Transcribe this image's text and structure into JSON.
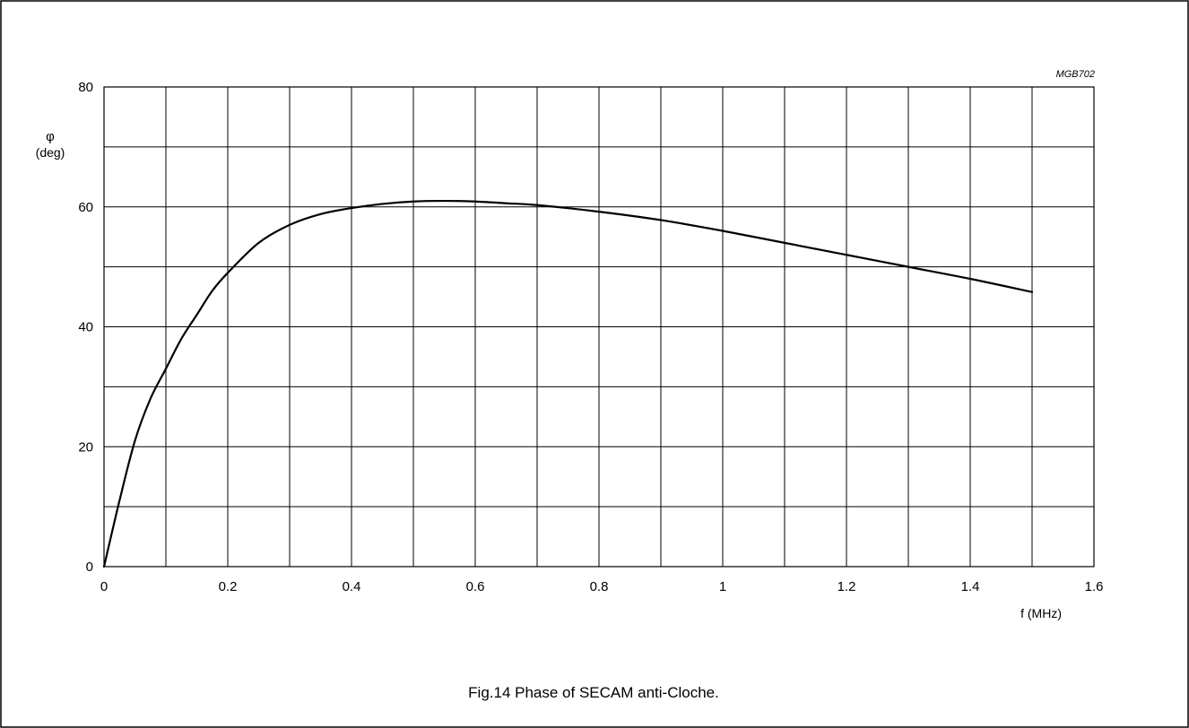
{
  "chart_data": {
    "type": "line",
    "title": "",
    "caption": "Fig.14  Phase of SECAM anti-Cloche.",
    "reference_code": "MGB702",
    "ylabel_symbol": "φ",
    "ylabel_unit": "(deg)",
    "xlabel": "f (MHz)",
    "xlim": [
      0,
      1.6
    ],
    "ylim": [
      0,
      80
    ],
    "x_ticks": [
      0,
      0.2,
      0.4,
      0.6,
      0.8,
      1,
      1.2,
      1.4,
      1.6
    ],
    "x_tick_labels": [
      "0",
      "0.2",
      "0.4",
      "0.6",
      "0.8",
      "1",
      "1.2",
      "1.4",
      "1.6"
    ],
    "y_ticks": [
      0,
      20,
      40,
      60,
      80
    ],
    "y_tick_labels": [
      "0",
      "20",
      "40",
      "60",
      "80"
    ],
    "x_grid_step": 0.1,
    "y_grid_step": 10,
    "grid": true,
    "series": [
      {
        "x": [
          0,
          0.025,
          0.05,
          0.075,
          0.1,
          0.125,
          0.15,
          0.175,
          0.2,
          0.25,
          0.3,
          0.35,
          0.4,
          0.45,
          0.5,
          0.55,
          0.6,
          0.65,
          0.7,
          0.8,
          0.9,
          1.0,
          1.1,
          1.2,
          1.3,
          1.4,
          1.5
        ],
        "y": [
          0,
          11,
          21,
          28,
          33,
          38,
          42,
          46,
          49,
          54,
          57,
          58.8,
          59.8,
          60.5,
          60.9,
          61,
          60.9,
          60.6,
          60.3,
          59.2,
          57.8,
          56,
          54,
          52,
          50,
          48,
          45.8
        ]
      }
    ]
  }
}
